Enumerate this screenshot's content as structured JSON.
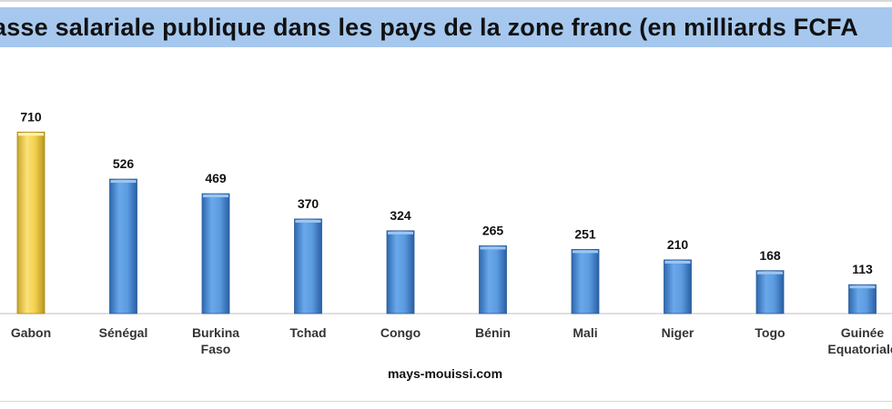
{
  "chart_data": {
    "type": "bar",
    "title": "asse salariale  publique dans les pays de la zone franc (en milliards  FCFA",
    "categories": [
      "Gabon",
      "Sénégal",
      "Burkina Faso",
      "Tchad",
      "Congo",
      "Bénin",
      "Mali",
      "Niger",
      "Togo",
      "Guinée Equatoriale"
    ],
    "category_lines": [
      [
        "Gabon"
      ],
      [
        "Sénégal"
      ],
      [
        "Burkina",
        "Faso"
      ],
      [
        "Tchad"
      ],
      [
        "Congo"
      ],
      [
        "Bénin"
      ],
      [
        "Mali"
      ],
      [
        "Niger"
      ],
      [
        "Togo"
      ],
      [
        "Guinée",
        "Equatoriale"
      ]
    ],
    "values": [
      710,
      526,
      469,
      370,
      324,
      265,
      251,
      210,
      168,
      113
    ],
    "highlight_index": 0,
    "colors": {
      "bar": "#4f8fd8",
      "highlight": "#f2d14e",
      "title_band": "#a6c8ee",
      "axis": "#bfbfbf"
    },
    "source": "mays-mouissi.com",
    "xlabel": "",
    "ylabel": "",
    "ylim": [
      0,
      800
    ],
    "grid": false,
    "legend": "none",
    "data_labels": true
  }
}
